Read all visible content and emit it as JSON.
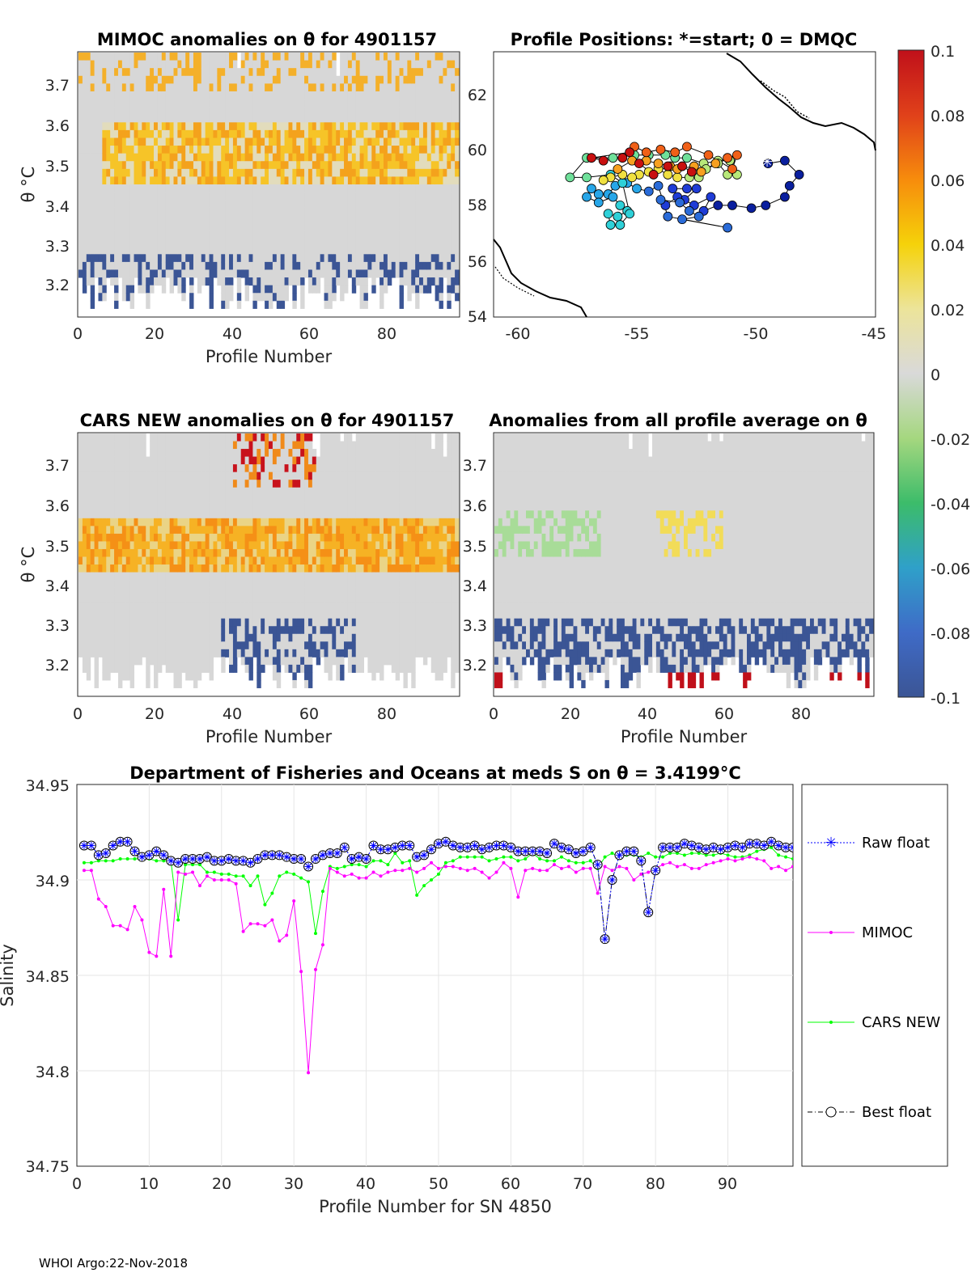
{
  "footer": "WHOI Argo:22-Nov-2018",
  "panels": {
    "p1": {
      "title": "MIMOC anomalies on θ  for 4901157",
      "xlabel": "Profile Number",
      "ylabel": "θ °C",
      "xticks": [
        "0",
        "20",
        "40",
        "60",
        "80"
      ],
      "yticks": [
        "3.7",
        "3.6",
        "3.5",
        "3.4",
        "3.3",
        "3.2"
      ]
    },
    "p2": {
      "title": "Profile Positions: *=start; 0 = DMQC",
      "xticks": [
        "-60",
        "-55",
        "-50",
        "-45"
      ],
      "yticks": [
        "62",
        "60",
        "58",
        "56",
        "54"
      ]
    },
    "p3": {
      "title": "CARS NEW anomalies on θ for 4901157",
      "xlabel": "Profile Number",
      "ylabel": "θ °C",
      "xticks": [
        "0",
        "20",
        "40",
        "60",
        "80"
      ],
      "yticks": [
        "3.7",
        "3.6",
        "3.5",
        "3.4",
        "3.3",
        "3.2"
      ]
    },
    "p4": {
      "title": "Anomalies from all profile average on θ",
      "xlabel": "Profile Number",
      "xticks": [
        "0",
        "20",
        "40",
        "60",
        "80"
      ],
      "yticks": [
        "3.7",
        "3.6",
        "3.5",
        "3.4",
        "3.3",
        "3.2"
      ]
    }
  },
  "colorbar": {
    "ticks": [
      "0.1",
      "0.08",
      "0.06",
      "0.04",
      "0.02",
      "0",
      "-0.02",
      "-0.04",
      "-0.06",
      "-0.08",
      "-0.1"
    ]
  },
  "chart_data": {
    "type": "line",
    "title": "Department of Fisheries and Oceans at meds S on θ = 3.4199°C",
    "xlabel": "Profile Number for SN 4850",
    "ylabel": "Salinity",
    "xlim": [
      0,
      99
    ],
    "ylim": [
      34.75,
      34.95
    ],
    "xticks": [
      "0",
      "10",
      "20",
      "30",
      "40",
      "50",
      "60",
      "70",
      "80",
      "90"
    ],
    "yticks": [
      "34.95",
      "34.9",
      "34.85",
      "34.8",
      "34.75"
    ],
    "legend": [
      "Raw float",
      "MIMOC",
      "CARS NEW",
      "Best float"
    ],
    "series": [
      {
        "name": "Raw float",
        "values": [
          34.918,
          34.918,
          34.913,
          34.914,
          34.918,
          34.92,
          34.92,
          34.915,
          34.912,
          34.913,
          34.915,
          34.913,
          34.91,
          34.909,
          34.911,
          34.911,
          34.911,
          34.912,
          34.91,
          34.91,
          34.911,
          34.91,
          34.91,
          34.909,
          34.911,
          34.913,
          34.913,
          34.913,
          34.912,
          34.911,
          34.911,
          34.907,
          34.911,
          34.913,
          34.914,
          34.914,
          34.917,
          34.911,
          34.912,
          34.911,
          34.918,
          34.916,
          34.916,
          34.917,
          34.918,
          34.918,
          34.912,
          34.913,
          34.916,
          34.919,
          34.92,
          34.918,
          34.917,
          34.917,
          34.918,
          34.916,
          34.917,
          34.918,
          34.918,
          34.917,
          34.915,
          34.915,
          34.915,
          34.915,
          34.914,
          34.919,
          34.917,
          34.916,
          34.914,
          34.915,
          34.917,
          34.908,
          34.869,
          34.9,
          34.913,
          34.915,
          34.915,
          34.91,
          34.883,
          34.905,
          34.917,
          34.917,
          34.917,
          34.919,
          34.918,
          34.917,
          34.916,
          34.917,
          34.916,
          34.917,
          34.918,
          34.917,
          34.919,
          34.919,
          34.918,
          34.92,
          34.918,
          34.917,
          34.917
        ]
      },
      {
        "name": "MIMOC",
        "values": [
          34.905,
          34.905,
          34.89,
          34.886,
          34.876,
          34.876,
          34.874,
          34.886,
          34.879,
          34.862,
          34.86,
          34.895,
          34.86,
          34.904,
          34.903,
          34.904,
          34.897,
          34.902,
          34.9,
          34.9,
          34.9,
          34.898,
          34.873,
          34.877,
          34.877,
          34.876,
          34.879,
          34.868,
          34.871,
          34.889,
          34.852,
          34.799,
          34.853,
          34.866,
          34.906,
          34.904,
          34.902,
          34.903,
          34.901,
          34.901,
          34.904,
          34.902,
          34.904,
          34.905,
          34.905,
          34.906,
          34.904,
          34.906,
          34.909,
          34.906,
          34.907,
          34.907,
          34.906,
          34.905,
          34.906,
          34.904,
          34.901,
          34.904,
          34.909,
          34.906,
          34.891,
          34.905,
          34.906,
          34.905,
          34.905,
          34.908,
          34.906,
          34.907,
          34.904,
          34.906,
          34.906,
          34.893,
          34.907,
          34.905,
          34.907,
          34.906,
          34.9,
          34.903,
          34.904,
          34.906,
          34.908,
          34.909,
          34.907,
          34.908,
          34.906,
          34.906,
          34.908,
          34.909,
          34.91,
          34.911,
          34.91,
          34.911,
          34.912,
          34.911,
          34.91,
          34.906,
          34.907,
          34.905,
          34.907
        ]
      },
      {
        "name": "CARS NEW",
        "values": [
          34.909,
          34.909,
          34.91,
          34.91,
          34.91,
          34.911,
          34.911,
          34.911,
          34.911,
          34.911,
          34.91,
          34.91,
          34.91,
          34.879,
          34.908,
          34.908,
          34.908,
          34.904,
          34.904,
          34.903,
          34.903,
          34.902,
          34.902,
          34.897,
          34.902,
          34.887,
          34.893,
          34.902,
          34.904,
          34.903,
          34.901,
          34.899,
          34.872,
          34.894,
          34.907,
          34.906,
          34.907,
          34.908,
          34.908,
          34.907,
          34.91,
          34.91,
          34.908,
          34.914,
          34.909,
          34.91,
          34.892,
          34.897,
          34.9,
          34.903,
          34.909,
          34.91,
          34.912,
          34.912,
          34.912,
          34.912,
          34.91,
          34.911,
          34.912,
          34.912,
          34.91,
          34.911,
          34.914,
          34.911,
          34.91,
          34.91,
          34.912,
          34.91,
          34.909,
          34.909,
          34.91,
          34.906,
          34.912,
          34.914,
          34.912,
          34.913,
          34.913,
          34.912,
          34.914,
          34.912,
          34.912,
          34.914,
          34.914,
          34.913,
          34.914,
          34.914,
          34.913,
          34.913,
          34.914,
          34.913,
          34.912,
          34.912,
          34.913,
          34.915,
          34.916,
          34.917,
          34.913,
          34.912,
          34.911
        ]
      },
      {
        "name": "Best float",
        "values": [
          34.918,
          34.918,
          34.913,
          34.914,
          34.918,
          34.92,
          34.92,
          34.915,
          34.912,
          34.913,
          34.915,
          34.913,
          34.91,
          34.909,
          34.911,
          34.911,
          34.911,
          34.912,
          34.91,
          34.91,
          34.911,
          34.91,
          34.91,
          34.909,
          34.911,
          34.913,
          34.913,
          34.913,
          34.912,
          34.911,
          34.911,
          34.907,
          34.911,
          34.913,
          34.914,
          34.914,
          34.917,
          34.911,
          34.912,
          34.911,
          34.918,
          34.916,
          34.916,
          34.917,
          34.918,
          34.918,
          34.912,
          34.913,
          34.916,
          34.919,
          34.92,
          34.918,
          34.917,
          34.917,
          34.918,
          34.916,
          34.917,
          34.918,
          34.918,
          34.917,
          34.915,
          34.915,
          34.915,
          34.915,
          34.914,
          34.919,
          34.917,
          34.916,
          34.914,
          34.915,
          34.917,
          34.908,
          34.869,
          34.9,
          34.913,
          34.915,
          34.915,
          34.91,
          34.883,
          34.905,
          34.917,
          34.917,
          34.917,
          34.919,
          34.918,
          34.917,
          34.916,
          34.917,
          34.916,
          34.917,
          34.918,
          34.917,
          34.919,
          34.919,
          34.918,
          34.92,
          34.918,
          34.917,
          34.917
        ]
      }
    ]
  },
  "map": {
    "positions": [
      [
        -49.5,
        59.5
      ],
      [
        -48.8,
        59.6
      ],
      [
        -48.2,
        59.1
      ],
      [
        -48.6,
        58.7
      ],
      [
        -48.8,
        58.3
      ],
      [
        -49.6,
        58.0
      ],
      [
        -50.2,
        57.9
      ],
      [
        -51.0,
        58.0
      ],
      [
        -51.6,
        58.0
      ],
      [
        -52.2,
        57.8
      ],
      [
        -51.9,
        58.3
      ],
      [
        -52.6,
        58.0
      ],
      [
        -53.0,
        58.2
      ],
      [
        -52.5,
        58.6
      ],
      [
        -52.9,
        58.6
      ],
      [
        -53.5,
        58.6
      ],
      [
        -53.3,
        58.3
      ],
      [
        -53.8,
        58.0
      ],
      [
        -54.0,
        58.2
      ],
      [
        -53.2,
        58.1
      ],
      [
        -52.8,
        57.8
      ],
      [
        -52.4,
        57.6
      ],
      [
        -53.1,
        57.5
      ],
      [
        -51.2,
        57.2
      ],
      [
        -53.7,
        57.6
      ],
      [
        -54.1,
        58.7
      ],
      [
        -54.5,
        58.5
      ],
      [
        -55.0,
        58.6
      ],
      [
        -55.4,
        58.8
      ],
      [
        -55.9,
        58.7
      ],
      [
        -56.2,
        58.4
      ],
      [
        -56.6,
        58.4
      ],
      [
        -56.9,
        58.6
      ],
      [
        -57.1,
        58.3
      ],
      [
        -56.6,
        58.1
      ],
      [
        -56.0,
        58.3
      ],
      [
        -55.7,
        58.0
      ],
      [
        -55.4,
        57.8
      ],
      [
        -55.8,
        57.6
      ],
      [
        -56.2,
        57.7
      ],
      [
        -56.1,
        57.3
      ],
      [
        -55.7,
        57.3
      ],
      [
        -55.3,
        57.7
      ],
      [
        -55.6,
        58.8
      ],
      [
        -56.1,
        59.1
      ],
      [
        -57.1,
        59.0
      ],
      [
        -57.8,
        59.0
      ],
      [
        -57.1,
        59.7
      ],
      [
        -56.0,
        59.7
      ],
      [
        -55.1,
        59.8
      ],
      [
        -54.5,
        59.8
      ],
      [
        -53.8,
        59.8
      ],
      [
        -53.4,
        59.7
      ],
      [
        -52.9,
        59.7
      ],
      [
        -52.2,
        59.5
      ],
      [
        -51.6,
        59.6
      ],
      [
        -51.1,
        59.6
      ],
      [
        -50.8,
        59.1
      ],
      [
        -51.2,
        59.1
      ],
      [
        -51.6,
        59.5
      ],
      [
        -52.1,
        59.3
      ],
      [
        -52.4,
        59.0
      ],
      [
        -52.8,
        59.0
      ],
      [
        -53.3,
        59.0
      ],
      [
        -53.7,
        59.1
      ],
      [
        -54.1,
        59.3
      ],
      [
        -54.5,
        59.2
      ],
      [
        -54.9,
        59.1
      ],
      [
        -55.2,
        59.0
      ],
      [
        -55.6,
        59.1
      ],
      [
        -56.1,
        59.0
      ],
      [
        -56.4,
        58.9
      ],
      [
        -55.8,
        59.3
      ],
      [
        -55.2,
        59.6
      ],
      [
        -54.6,
        59.6
      ],
      [
        -54.1,
        59.5
      ],
      [
        -53.6,
        59.4
      ],
      [
        -53.3,
        59.3
      ],
      [
        -52.6,
        59.4
      ],
      [
        -52.3,
        59.2
      ],
      [
        -51.7,
        59.5
      ],
      [
        -51.2,
        59.7
      ],
      [
        -50.8,
        59.8
      ],
      [
        -51.0,
        59.3
      ],
      [
        -52.0,
        59.8
      ],
      [
        -52.9,
        60.1
      ],
      [
        -53.4,
        59.9
      ],
      [
        -54.0,
        60.0
      ],
      [
        -54.6,
        59.9
      ],
      [
        -55.1,
        60.1
      ],
      [
        -55.6,
        59.7
      ],
      [
        -56.4,
        59.6
      ],
      [
        -56.9,
        59.7
      ],
      [
        -55.3,
        59.9
      ],
      [
        -54.9,
        59.5
      ],
      [
        -54.3,
        59.1
      ],
      [
        -53.7,
        59.4
      ],
      [
        -53.1,
        59.4
      ],
      [
        -52.7,
        59.2
      ]
    ]
  }
}
